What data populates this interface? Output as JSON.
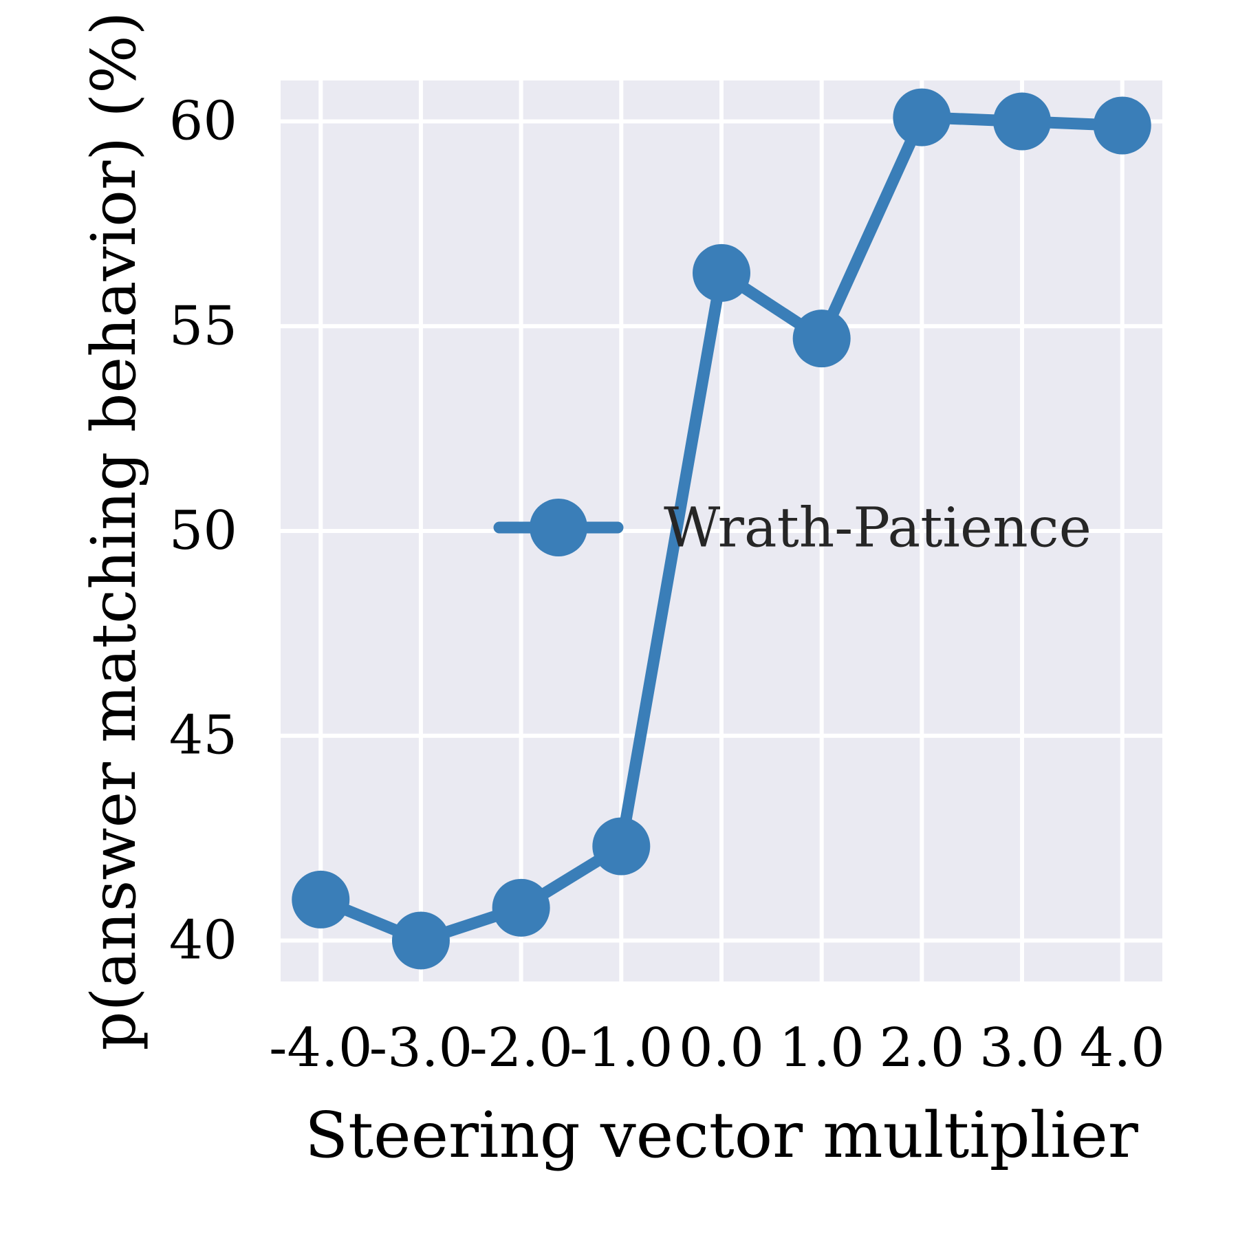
{
  "colors": {
    "plot_background": "#eaeaf2",
    "grid": "#ffffff",
    "series": "#3a7eb8",
    "text": "#000000",
    "legend_text": "#262626"
  },
  "chart_data": {
    "type": "line",
    "xlabel": "Steering vector multiplier",
    "ylabel": "p(answer matching behavior) (%)",
    "x": [
      -4.0,
      -3.0,
      -2.0,
      -1.0,
      0.0,
      1.0,
      2.0,
      3.0,
      4.0
    ],
    "x_tick_labels": [
      "-4.0",
      "-3.0",
      "-2.0",
      "-1.0",
      "0.0",
      "1.0",
      "2.0",
      "3.0",
      "4.0"
    ],
    "y_ticks": [
      40,
      45,
      50,
      55,
      60
    ],
    "y_tick_labels": [
      "40",
      "45",
      "50",
      "55",
      "60"
    ],
    "xlim": [
      -4.4,
      4.4
    ],
    "ylim": [
      39.0,
      61.0
    ],
    "grid": true,
    "legend_position": "center-right",
    "series": [
      {
        "name": "Wrath-Patience",
        "values": [
          41.0,
          40.0,
          40.8,
          42.3,
          56.3,
          54.7,
          60.1,
          60.0,
          59.9
        ]
      }
    ]
  }
}
